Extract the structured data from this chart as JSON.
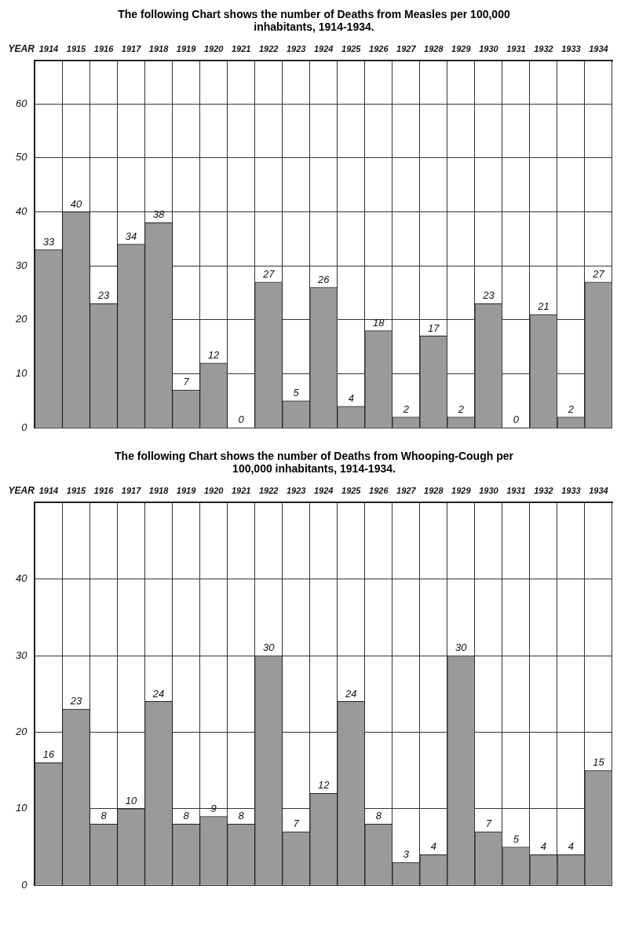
{
  "chart_data": [
    {
      "type": "bar",
      "title": "The following Chart shows the number of Deaths from Measles per 100,000 inhabitants, 1914-1934.",
      "xlabel": "YEAR",
      "categories": [
        "1914",
        "1915",
        "1916",
        "1917",
        "1918",
        "1919",
        "1920",
        "1921",
        "1922",
        "1923",
        "1924",
        "1925",
        "1926",
        "1927",
        "1928",
        "1929",
        "1930",
        "1931",
        "1932",
        "1933",
        "1934"
      ],
      "values": [
        33,
        40,
        23,
        34,
        38,
        7,
        12,
        0,
        27,
        5,
        26,
        4,
        18,
        2,
        17,
        2,
        23,
        0,
        21,
        2,
        27
      ],
      "color": "#9a9a9a",
      "ylim": [
        0,
        68
      ],
      "yticks": [
        0,
        10,
        20,
        30,
        40,
        50,
        60
      ],
      "grid": true,
      "data_labels": true
    },
    {
      "type": "bar",
      "title": "The following Chart shows the number of Deaths from Whooping-Cough per 100,000 inhabitants, 1914-1934.",
      "xlabel": "YEAR",
      "categories": [
        "1914",
        "1915",
        "1916",
        "1917",
        "1918",
        "1919",
        "1920",
        "1921",
        "1922",
        "1923",
        "1924",
        "1925",
        "1926",
        "1927",
        "1928",
        "1929",
        "1930",
        "1931",
        "1932",
        "1933",
        "1934"
      ],
      "values": [
        16,
        23,
        8,
        10,
        24,
        8,
        9,
        8,
        30,
        7,
        12,
        24,
        8,
        3,
        4,
        30,
        7,
        5,
        4,
        4,
        15
      ],
      "color": "#9a9a9a",
      "ylim": [
        0,
        50
      ],
      "yticks": [
        0,
        10,
        20,
        30,
        40
      ],
      "grid": true,
      "data_labels": true
    }
  ]
}
